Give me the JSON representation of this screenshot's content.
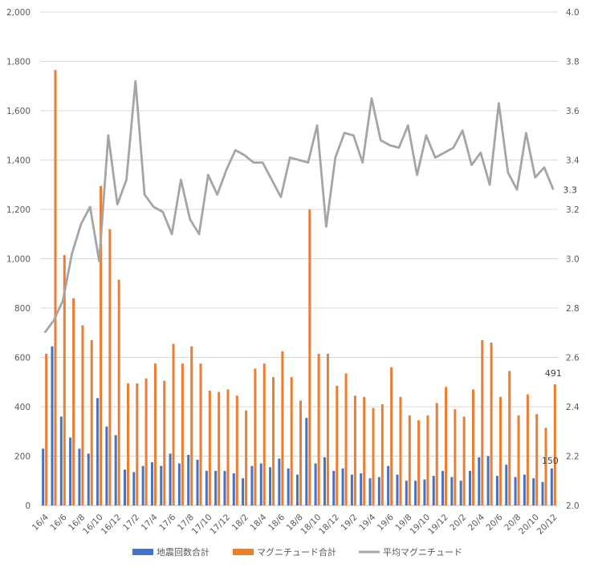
{
  "chart_data": {
    "type": "bar",
    "title": "",
    "xlabel": "",
    "ylabel": "",
    "ylim": [
      0,
      2000
    ],
    "y2lim": [
      2.0,
      4.0
    ],
    "grid": true,
    "legend_position": "bottom",
    "y_ticks": [
      "0",
      "200",
      "400",
      "600",
      "800",
      "1,000",
      "1,200",
      "1,400",
      "1,600",
      "1,800",
      "2,000"
    ],
    "y2_ticks": [
      "2.0",
      "2.2",
      "2.4",
      "2.6",
      "2.8",
      "3.0",
      "3.2",
      "3.4",
      "3.6",
      "3.8",
      "4.0"
    ],
    "x_tick_labels": [
      "16/4",
      "16/6",
      "16/8",
      "16/10",
      "16/12",
      "17/2",
      "17/4",
      "17/6",
      "17/8",
      "17/10",
      "17/12",
      "18/2",
      "18/4",
      "18/6",
      "18/8",
      "18/10",
      "18/12",
      "19/2",
      "19/4",
      "19/6",
      "19/8",
      "19/10",
      "19/12",
      "20/2",
      "20/4",
      "20/6",
      "20/8",
      "20/10",
      "20/12"
    ],
    "categories": [
      "16/4",
      "16/5",
      "16/6",
      "16/7",
      "16/8",
      "16/9",
      "16/10",
      "16/11",
      "16/12",
      "17/1",
      "17/2",
      "17/3",
      "17/4",
      "17/5",
      "17/6",
      "17/7",
      "17/8",
      "17/9",
      "17/10",
      "17/11",
      "17/12",
      "18/1",
      "18/2",
      "18/3",
      "18/4",
      "18/5",
      "18/6",
      "18/7",
      "18/8",
      "18/9",
      "18/10",
      "18/11",
      "18/12",
      "19/1",
      "19/2",
      "19/3",
      "19/4",
      "19/5",
      "19/6",
      "19/7",
      "19/8",
      "19/9",
      "19/10",
      "19/11",
      "19/12",
      "20/1",
      "20/2",
      "20/3",
      "20/4",
      "20/5",
      "20/6",
      "20/7",
      "20/8",
      "20/9",
      "20/10",
      "20/11",
      "20/12"
    ],
    "series": [
      {
        "name": "地震回数合計",
        "color": "#4472c4",
        "axis": "left",
        "kind": "bar",
        "values": [
          230,
          645,
          360,
          275,
          230,
          210,
          435,
          320,
          285,
          145,
          135,
          160,
          175,
          160,
          210,
          170,
          205,
          185,
          140,
          140,
          140,
          130,
          110,
          160,
          170,
          155,
          190,
          150,
          125,
          355,
          170,
          195,
          140,
          150,
          125,
          130,
          110,
          115,
          160,
          125,
          100,
          100,
          105,
          120,
          140,
          115,
          100,
          140,
          195,
          200,
          120,
          165,
          115,
          125,
          110,
          95,
          150
        ]
      },
      {
        "name": "マグニチュード合計",
        "color": "#ed7d31",
        "axis": "left",
        "kind": "bar",
        "values": [
          615,
          1765,
          1015,
          840,
          730,
          670,
          1295,
          1120,
          915,
          495,
          495,
          515,
          575,
          505,
          655,
          575,
          645,
          575,
          465,
          460,
          470,
          445,
          385,
          555,
          575,
          520,
          625,
          520,
          425,
          1200,
          615,
          615,
          485,
          535,
          445,
          440,
          395,
          410,
          560,
          440,
          365,
          345,
          365,
          415,
          480,
          390,
          360,
          470,
          670,
          660,
          440,
          545,
          365,
          450,
          370,
          315,
          491
        ]
      },
      {
        "name": "平均マグニチュード",
        "color": "#a5a5a5",
        "axis": "right",
        "kind": "line",
        "values": [
          2.7,
          2.75,
          2.83,
          3.02,
          3.14,
          3.21,
          2.99,
          3.5,
          3.22,
          3.32,
          3.72,
          3.26,
          3.21,
          3.19,
          3.1,
          3.32,
          3.16,
          3.1,
          3.34,
          3.26,
          3.36,
          3.44,
          3.42,
          3.39,
          3.39,
          3.32,
          3.25,
          3.41,
          3.4,
          3.39,
          3.54,
          3.13,
          3.41,
          3.51,
          3.5,
          3.39,
          3.65,
          3.48,
          3.46,
          3.45,
          3.54,
          3.34,
          3.5,
          3.41,
          3.43,
          3.45,
          3.52,
          3.38,
          3.43,
          3.3,
          3.63,
          3.35,
          3.28,
          3.51,
          3.33,
          3.37,
          3.28
        ]
      }
    ],
    "data_labels": [
      {
        "series": 0,
        "index": 56,
        "text": "150"
      },
      {
        "series": 1,
        "index": 56,
        "text": "491"
      },
      {
        "series": 2,
        "index": 56,
        "text": "3.3"
      }
    ]
  }
}
